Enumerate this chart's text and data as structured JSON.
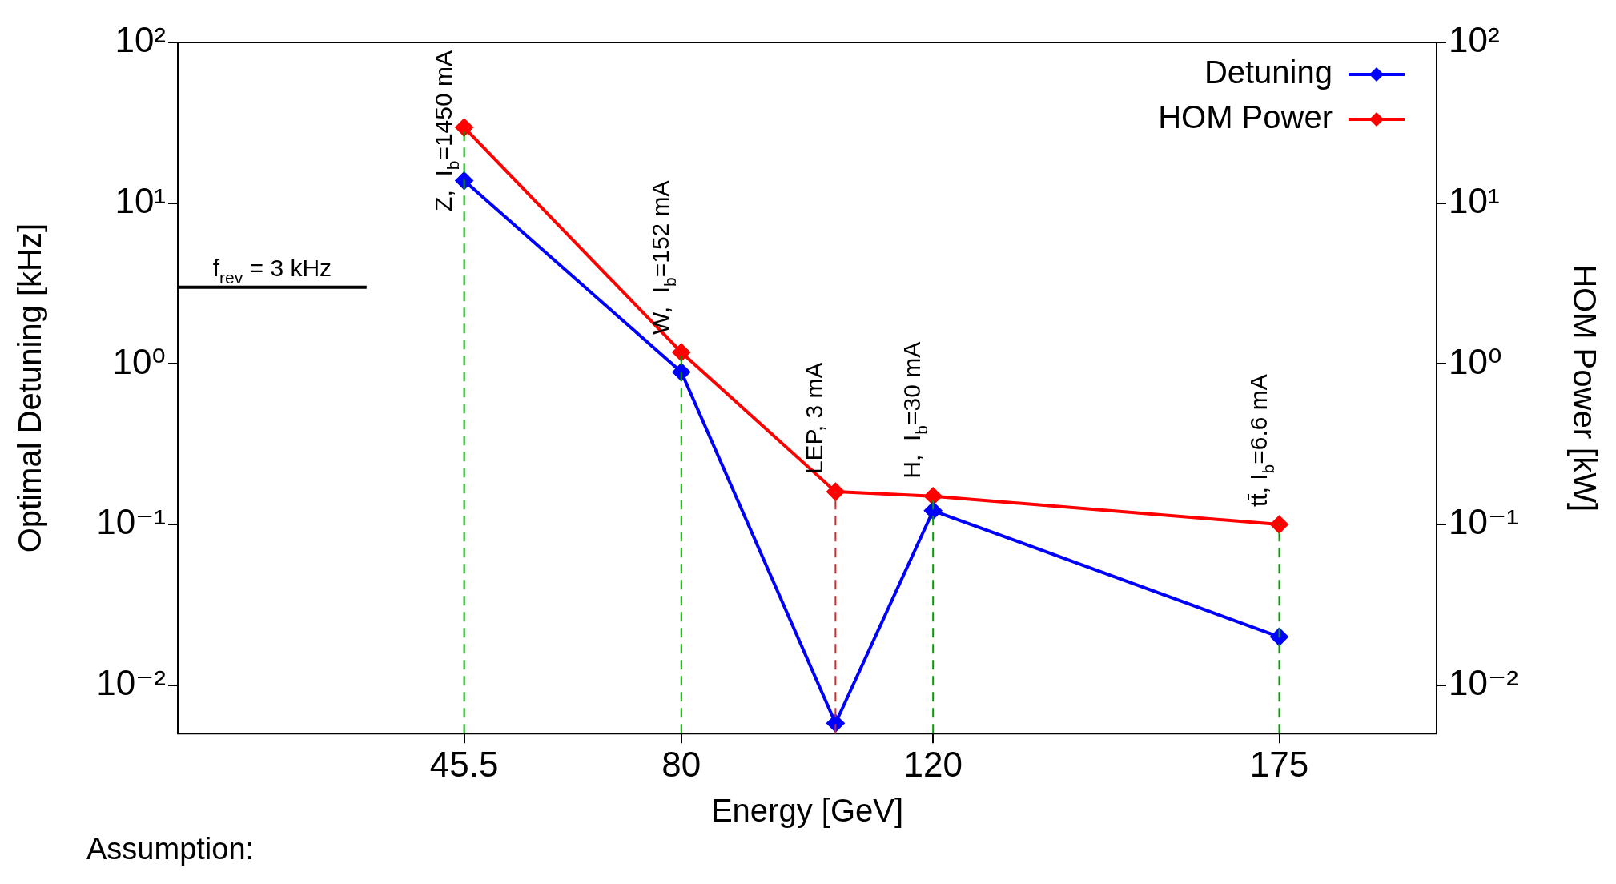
{
  "chart_data": {
    "type": "line",
    "xlabel": "Energy [GeV]",
    "ylabel": "Optimal Detuning [kHz]",
    "y2label": "HOM Power [kW]",
    "x": [
      45.5,
      80,
      104.5,
      120,
      175
    ],
    "xlim": [
      0,
      200
    ],
    "xticks": [
      45.5,
      80,
      120,
      175
    ],
    "log": "y",
    "ylim": [
      0.005,
      100
    ],
    "yticks": [
      {
        "value": 0.01,
        "label": "10⁻²"
      },
      {
        "value": 0.1,
        "label": "10⁻¹"
      },
      {
        "value": 1,
        "label": "10⁰"
      },
      {
        "value": 10,
        "label": "10¹"
      },
      {
        "value": 100,
        "label": "10²"
      }
    ],
    "series": [
      {
        "name": "Detuning",
        "color": "#0000ff",
        "values": [
          13.8,
          0.89,
          0.0058,
          0.122,
          0.02
        ]
      },
      {
        "name": "HOM Power",
        "color": "#ff0000",
        "values": [
          29.6,
          1.18,
          0.16,
          0.15,
          0.1
        ]
      },
      {
        "name": "f$_{rev}$ = 3 kHz",
        "type": "line",
        "color": "#000000",
        "marker": "none",
        "x": [
          0,
          30
        ],
        "values": [
          3,
          3
        ]
      }
    ],
    "marker": "diamond",
    "line_style": "solid",
    "legend": "top right",
    "grid": false,
    "ref_lines": [
      {
        "axis": "x",
        "value": 45.5,
        "color": "#00a000",
        "line_style": "dashed"
      },
      {
        "axis": "x",
        "value": 80,
        "color": "#00a000",
        "line_style": "dashed"
      },
      {
        "axis": "x",
        "value": 104.5,
        "color": "#c03030",
        "line_style": "dashed"
      },
      {
        "axis": "x",
        "value": 120,
        "color": "#00a000",
        "line_style": "dashed"
      },
      {
        "axis": "x",
        "value": 175,
        "color": "#00a000",
        "line_style": "dashed"
      }
    ],
    "annotations": [
      "Z,  I$_{b}$=1450 mA",
      "W,  I$_{b}$=152 mA",
      "LEP, 3 mA",
      "H,  I$_{b}$=30 mA",
      "tt̄, I$_{b}$=6.6 mA",
      "Assumption:"
    ]
  }
}
